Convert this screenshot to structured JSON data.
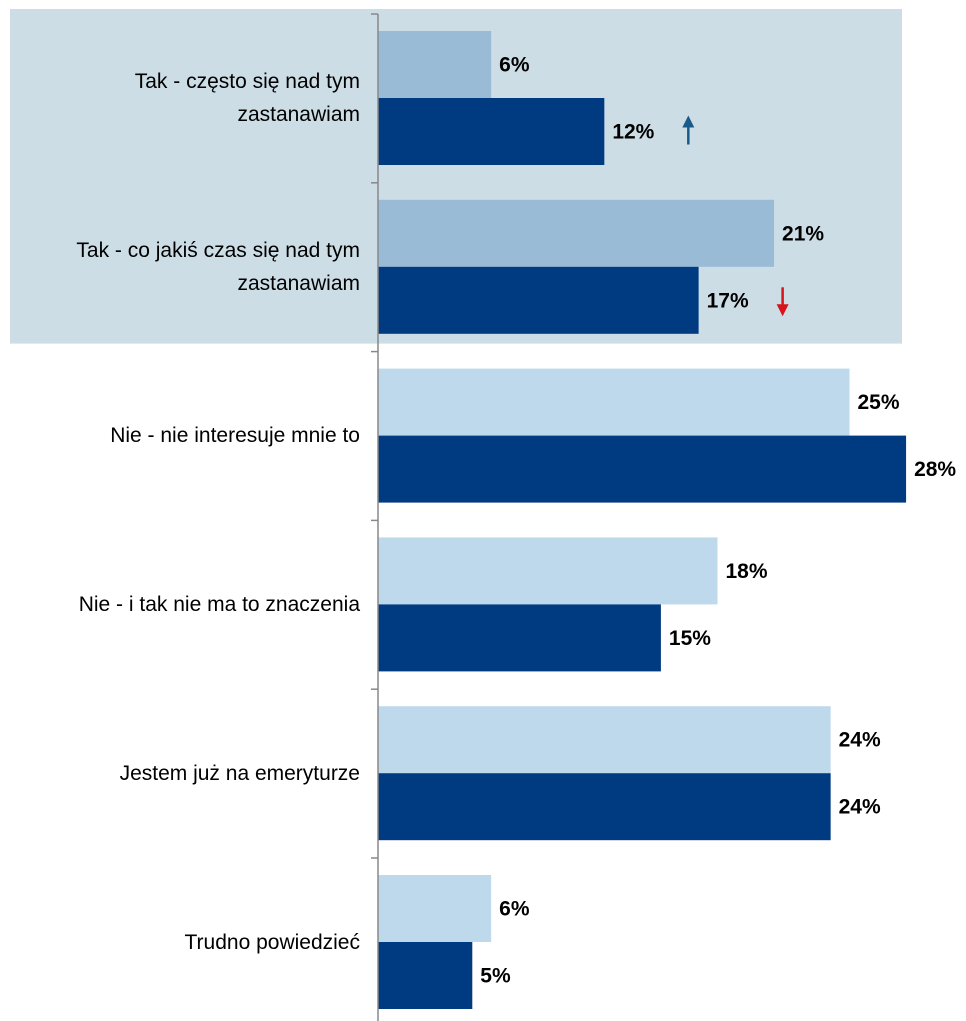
{
  "colors": {
    "highlight_bg": "#ccdde6",
    "series_a_highlight": "#99bbd6",
    "series_a_normal": "#bed9ec",
    "series_b": "#003a80",
    "axis": "#888888",
    "arrow_up": "#1a5a8a",
    "arrow_down": "#d7141c"
  },
  "chart_data": {
    "type": "bar",
    "orientation": "horizontal",
    "categories": [
      "Tak - często się nad tym zastanawiam",
      "Tak - co jakiś czas się nad tym zastanawiam",
      "Nie - nie interesuje mnie to",
      "Nie - i tak nie ma to znaczenia",
      "Jestem już na emeryturze",
      "Trudno powiedzieć"
    ],
    "series": [
      {
        "values": [
          6,
          21,
          25,
          18,
          24,
          6
        ]
      },
      {
        "values": [
          12,
          17,
          28,
          15,
          24,
          5
        ]
      }
    ],
    "value_labels": [
      [
        "6%",
        "21%",
        "25%",
        "18%",
        "24%",
        "6%"
      ],
      [
        "12%",
        "17%",
        "28%",
        "15%",
        "24%",
        "5%"
      ]
    ],
    "trend_markers": [
      {
        "category_index": 0,
        "direction": "up",
        "icon": "arrow-up-icon"
      },
      {
        "category_index": 1,
        "direction": "down",
        "icon": "arrow-down-icon"
      }
    ],
    "highlighted_categories": [
      0,
      1
    ],
    "xlim": [
      0,
      28
    ],
    "grid": false,
    "legend": "none"
  }
}
